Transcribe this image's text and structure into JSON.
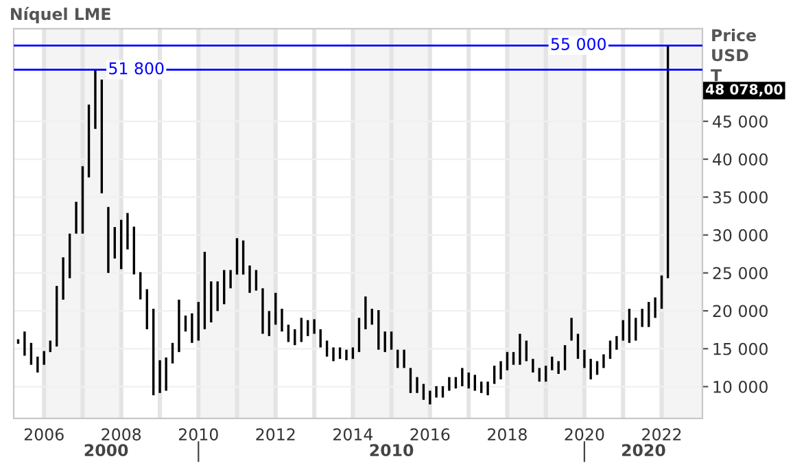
{
  "chart_data": {
    "type": "bar",
    "title": "Níquel LME",
    "ylabel": "Price\nUSD\nT",
    "x": [
      "2005-05",
      "2005-07",
      "2005-09",
      "2005-11",
      "2006-01",
      "2006-03",
      "2006-05",
      "2006-07",
      "2006-09",
      "2006-11",
      "2007-01",
      "2007-03",
      "2007-05",
      "2007-07",
      "2007-09",
      "2007-11",
      "2008-01",
      "2008-03",
      "2008-05",
      "2008-07",
      "2008-09",
      "2008-11",
      "2009-01",
      "2009-03",
      "2009-05",
      "2009-07",
      "2009-09",
      "2009-11",
      "2010-01",
      "2010-03",
      "2010-05",
      "2010-07",
      "2010-09",
      "2010-11",
      "2011-01",
      "2011-03",
      "2011-05",
      "2011-07",
      "2011-09",
      "2011-11",
      "2012-01",
      "2012-03",
      "2012-05",
      "2012-07",
      "2012-09",
      "2012-11",
      "2013-01",
      "2013-03",
      "2013-05",
      "2013-07",
      "2013-09",
      "2013-11",
      "2014-01",
      "2014-03",
      "2014-05",
      "2014-07",
      "2014-09",
      "2014-11",
      "2015-01",
      "2015-03",
      "2015-05",
      "2015-07",
      "2015-09",
      "2015-11",
      "2016-01",
      "2016-03",
      "2016-05",
      "2016-07",
      "2016-09",
      "2016-11",
      "2017-01",
      "2017-03",
      "2017-05",
      "2017-07",
      "2017-09",
      "2017-11",
      "2018-01",
      "2018-03",
      "2018-05",
      "2018-07",
      "2018-09",
      "2018-11",
      "2019-01",
      "2019-03",
      "2019-05",
      "2019-07",
      "2019-09",
      "2019-11",
      "2020-01",
      "2020-03",
      "2020-05",
      "2020-07",
      "2020-09",
      "2020-11",
      "2021-01",
      "2021-03",
      "2021-05",
      "2021-07",
      "2021-09",
      "2021-11",
      "2022-01",
      "2022-03"
    ],
    "base": [
      15650,
      14080,
      12880,
      11860,
      12880,
      14560,
      15290,
      21470,
      24300,
      30180,
      30180,
      37600,
      44000,
      35500,
      25000,
      26900,
      25500,
      28100,
      24800,
      21500,
      17570,
      8860,
      9160,
      9460,
      13060,
      14560,
      17270,
      15770,
      16070,
      17570,
      18470,
      19970,
      20870,
      22970,
      24780,
      24780,
      22370,
      22670,
      16970,
      16670,
      18170,
      17270,
      15890,
      15470,
      15890,
      16670,
      16970,
      15170,
      13960,
      13360,
      13660,
      13480,
      13660,
      14560,
      17570,
      18170,
      14870,
      14560,
      14870,
      12460,
      12460,
      9160,
      9160,
      8260,
      7660,
      8560,
      8560,
      9460,
      9760,
      10060,
      9760,
      9460,
      9160,
      8860,
      10360,
      10960,
      12160,
      12880,
      12880,
      13360,
      11860,
      10660,
      10660,
      12160,
      11680,
      12160,
      16070,
      13660,
      12460,
      10960,
      11560,
      12460,
      13660,
      14870,
      16070,
      15770,
      16070,
      17870,
      17870,
      19070,
      20270,
      24300
    ],
    "values": [
      600,
      3190,
      2890,
      2100,
      1810,
      1510,
      7990,
      5590,
      5880,
      4200,
      8890,
      9600,
      7800,
      15000,
      8700,
      4150,
      6500,
      4800,
      6300,
      3600,
      5280,
      11410,
      4320,
      4380,
      2710,
      6910,
      2100,
      3900,
      5100,
      10210,
      5410,
      3910,
      4510,
      2410,
      4800,
      4500,
      3610,
      2710,
      6000,
      3300,
      4200,
      3000,
      2280,
      2100,
      3180,
      2100,
      1920,
      2400,
      2110,
      1810,
      1510,
      1390,
      1510,
      4510,
      4320,
      2100,
      5220,
      2710,
      2400,
      2410,
      2410,
      3300,
      2100,
      2100,
      1800,
      1500,
      1500,
      1800,
      1500,
      2400,
      2100,
      2100,
      1500,
      1800,
      2400,
      2400,
      2400,
      1680,
      4090,
      2710,
      1800,
      1800,
      2100,
      1800,
      1680,
      3310,
      3000,
      3310,
      2410,
      2700,
      1800,
      1800,
      2410,
      1800,
      2700,
      4500,
      3000,
      2400,
      3300,
      2700,
      4390,
      30700
    ],
    "color": "#000000",
    "xlim": [
      "2005-03-20",
      "2023-01-22"
    ],
    "xticks": [
      {
        "value": "2006-01-01",
        "label": "2006"
      },
      {
        "value": "2007-01-01",
        "label": null
      },
      {
        "value": "2008-01-01",
        "label": "2008"
      },
      {
        "value": "2009-01-01",
        "label": null
      },
      {
        "value": "2010-01-01",
        "label": "2010"
      },
      {
        "value": "2011-01-01",
        "label": null
      },
      {
        "value": "2012-01-01",
        "label": "2012"
      },
      {
        "value": "2013-01-01",
        "label": null
      },
      {
        "value": "2014-01-01",
        "label": "2014"
      },
      {
        "value": "2015-01-01",
        "label": null
      },
      {
        "value": "2016-01-01",
        "label": "2016"
      },
      {
        "value": "2017-01-01",
        "label": null
      },
      {
        "value": "2018-01-01",
        "label": "2018"
      },
      {
        "value": "2019-01-01",
        "label": null
      },
      {
        "value": "2020-01-01",
        "label": "2020"
      },
      {
        "value": "2021-01-01",
        "label": null
      },
      {
        "value": "2022-01-01",
        "label": "2022"
      }
    ],
    "ylim": [
      5800,
      57200
    ],
    "yticks": [
      {
        "value": 10000,
        "label": "10 000"
      },
      {
        "value": 15000,
        "label": "15 000"
      },
      {
        "value": 20000,
        "label": "20 000"
      },
      {
        "value": 25000,
        "label": "25 000"
      },
      {
        "value": 30000,
        "label": "30 000"
      },
      {
        "value": 35000,
        "label": "35 000"
      },
      {
        "value": 40000,
        "label": "40 000"
      },
      {
        "value": 45000,
        "label": "45 000"
      }
    ],
    "ref_lines": [
      {
        "axis": "y",
        "value": 55000,
        "label": "55 000",
        "color": "#0000ff"
      },
      {
        "axis": "y",
        "value": 51800,
        "label": "51 800",
        "color": "#0000ff"
      }
    ],
    "bands": [
      {
        "axis": "x",
        "from": "2006-01-01",
        "to": "2008-01-01",
        "color": "#f4f4f4"
      },
      {
        "axis": "x",
        "from": "2010-01-01",
        "to": "2012-01-01",
        "color": "#f4f4f4"
      },
      {
        "axis": "x",
        "from": "2014-01-01",
        "to": "2016-01-01",
        "color": "#f4f4f4"
      },
      {
        "axis": "x",
        "from": "2018-01-01",
        "to": "2020-01-01",
        "color": "#f4f4f4"
      },
      {
        "axis": "x",
        "from": "2022-01-01",
        "to": "2023-01-22",
        "color": "#f4f4f4"
      }
    ],
    "annotations": [
      "48 078,00",
      "2000",
      "2010",
      "2020"
    ],
    "grid": true
  }
}
